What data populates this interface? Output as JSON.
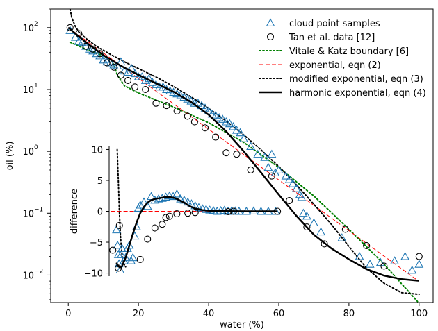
{
  "chart_data": [
    {
      "type": "scatter",
      "xlabel": "water (%)",
      "ylabel": "oil (%)",
      "yscale": "log",
      "xlim": [
        -5,
        104
      ],
      "ylim": [
        0.0036,
        200
      ],
      "x_ticks": [
        0,
        20,
        40,
        60,
        80,
        100
      ],
      "x_tick_labels": [
        "0",
        "20",
        "40",
        "60",
        "80",
        "100"
      ],
      "y_ticks": [
        0.01,
        0.1,
        1,
        10,
        100
      ],
      "y_tick_labels": [
        {
          "base": "10",
          "exp": "−2"
        },
        {
          "base": "10",
          "exp": "−1"
        },
        {
          "base": "10",
          "exp": "0"
        },
        {
          "base": "10",
          "exp": "1"
        },
        {
          "base": "10",
          "exp": "2"
        }
      ],
      "legend": {
        "placement": "top-right",
        "entries": [
          "cloud point samples",
          "Tan et al. data [12]",
          "Vitale & Katz boundary [6]",
          "exponential, eqn (2)",
          "modified exponential, eqn (3)",
          "harmonic exponential, eqn (4)"
        ]
      },
      "colors": {
        "samples": "#1f77b4",
        "tan": "#000000",
        "vitale": "#008000",
        "exponential": "#ff0000",
        "modified": "#000000",
        "harmonic": "#000000"
      },
      "series": [
        {
          "name": "cloud point samples",
          "marker": "triangle",
          "x": [
            0.5,
            2,
            3,
            4,
            5,
            6,
            7,
            8,
            9,
            10,
            11,
            12,
            13,
            14,
            15,
            16,
            17,
            18,
            19,
            20,
            21,
            22,
            23,
            24,
            25,
            26,
            27,
            28,
            29,
            30,
            31,
            32,
            33,
            34,
            35,
            36,
            37,
            38,
            39,
            40,
            41,
            42,
            43,
            44,
            45,
            46,
            47,
            48,
            49,
            50,
            52,
            54,
            56,
            57,
            58,
            59,
            60,
            62,
            63,
            64,
            65,
            66,
            66.5,
            67,
            68,
            70,
            72,
            78,
            83,
            86,
            89,
            93,
            96,
            98,
            100
          ],
          "y": [
            90,
            70,
            60,
            58,
            50,
            45,
            42,
            38,
            35,
            30,
            28,
            27,
            25,
            24,
            28,
            20,
            19,
            22,
            18,
            16,
            16,
            14,
            15,
            13,
            12,
            11,
            11,
            10,
            9.5,
            9,
            8.5,
            8,
            7.5,
            7,
            6.5,
            6,
            6,
            5.5,
            5,
            4.5,
            4,
            3.8,
            3.5,
            3.3,
            3,
            2.8,
            2.5,
            2.2,
            2.0,
            1.6,
            1.2,
            0.9,
            0.8,
            0.55,
            0.9,
            0.45,
            0.5,
            0.4,
            0.35,
            0.3,
            0.25,
            0.2,
            0.18,
            0.1,
            0.09,
            0.07,
            0.05,
            0.04,
            0.02,
            0.015,
            0.016,
            0.017,
            0.02,
            0.012,
            0.015
          ]
        },
        {
          "name": "Tan et al. data [12]",
          "marker": "circle",
          "x": [
            0.5,
            3,
            5,
            7,
            9,
            11,
            13,
            15,
            17,
            19,
            22,
            25,
            28,
            31,
            34,
            36,
            39,
            42,
            45,
            48,
            52,
            58,
            63,
            68,
            73,
            79,
            85,
            90,
            100
          ],
          "y": [
            100,
            80,
            50,
            45,
            38,
            27,
            23,
            17,
            14,
            11,
            10,
            6,
            5.5,
            4.5,
            3.7,
            3.0,
            2.4,
            1.7,
            0.95,
            0.9,
            0.5,
            0.4,
            0.16,
            0.06,
            0.032,
            0.055,
            0.03,
            0.014,
            0.02
          ]
        },
        {
          "name": "Vitale & Katz boundary [6]",
          "style": "dotted",
          "x": [
            0.5,
            5,
            10,
            12,
            13,
            14,
            16,
            20,
            30,
            40,
            50,
            60,
            70,
            80,
            90,
            100
          ],
          "y": [
            58,
            45,
            35,
            31,
            25,
            17,
            11.5,
            8.8,
            5.2,
            2.9,
            1.4,
            0.55,
            0.19,
            0.055,
            0.015,
            0.0035
          ]
        },
        {
          "name": "exponential, eqn (2)",
          "style": "dashed",
          "x": [
            0,
            100
          ],
          "y": [
            100,
            0.0079
          ]
        },
        {
          "name": "modified exponential, eqn (3)",
          "style": "dotted",
          "x": [
            0.5,
            1,
            2,
            3,
            5,
            8,
            12,
            16,
            20,
            25,
            30,
            35,
            40,
            45,
            50,
            55,
            60,
            65,
            70,
            75,
            80,
            85,
            90,
            95,
            100
          ],
          "y": [
            200,
            145,
            105,
            85,
            67,
            50,
            37,
            28,
            21.8,
            15.9,
            11.2,
            7.6,
            4.95,
            3.1,
            1.85,
            1.05,
            0.57,
            0.29,
            0.14,
            0.066,
            0.029,
            0.013,
            0.0074,
            0.0052,
            0.0049
          ]
        },
        {
          "name": "harmonic exponential, eqn (4)",
          "style": "solid",
          "x": [
            0,
            5,
            10,
            15,
            20,
            25,
            30,
            35,
            40,
            45,
            50,
            55,
            60,
            65,
            70,
            75,
            80,
            85,
            90,
            95,
            100
          ],
          "y": [
            100,
            58,
            36,
            24.2,
            17.2,
            12.6,
            9.2,
            6.3,
            3.9,
            2.1,
            1.0,
            0.45,
            0.2,
            0.091,
            0.045,
            0.027,
            0.018,
            0.0125,
            0.0098,
            0.0086,
            0.0081
          ]
        }
      ]
    },
    {
      "type": "scatter",
      "inset": true,
      "xlabel": "",
      "ylabel": "difference",
      "xlim": [
        12.5,
        60
      ],
      "ylim": [
        -10.5,
        10.5
      ],
      "y_ticks": [
        -10,
        -5,
        0,
        5,
        10
      ],
      "y_tick_labels": [
        "−10",
        "−5",
        "0",
        "5",
        "10"
      ],
      "series": [
        {
          "name": "cloud point samples",
          "marker": "triangle",
          "x": [
            14.5,
            14.8,
            15.0,
            15.2,
            15.5,
            15.8,
            16.0,
            16.5,
            17,
            17.5,
            18,
            18.5,
            19,
            19.5,
            20,
            20.5,
            21,
            22,
            23,
            24,
            25,
            26,
            27,
            28,
            29,
            30,
            31,
            32,
            33,
            34,
            35,
            36,
            37,
            38,
            39,
            40,
            41,
            42,
            43,
            44,
            45,
            46,
            47,
            48,
            50,
            52,
            54,
            56,
            58
          ],
          "y": [
            -3,
            -5.5,
            -7,
            -8.5,
            -9.5,
            -7,
            -6,
            -8,
            -7.5,
            -6,
            -5.5,
            -8,
            -7.5,
            -4,
            -2.5,
            0.5,
            1,
            1.5,
            0.8,
            2.4,
            1.8,
            2.0,
            2.1,
            2.3,
            2.5,
            2.4,
            2.8,
            2.0,
            1.8,
            1.5,
            1.2,
            0.9,
            0.6,
            0.4,
            0.3,
            0.2,
            0.1,
            0.0,
            0.1,
            0.15,
            0.0,
            0.1,
            0.05,
            0.0,
            0.0,
            0.05,
            0.0,
            0.0,
            0.0
          ]
        },
        {
          "name": "Tan et al. data [12]",
          "marker": "circle",
          "x": [
            13.5,
            15,
            15.3,
            21,
            23,
            25,
            27,
            28,
            29,
            31,
            34,
            36,
            45,
            46.5,
            58.5
          ],
          "y": [
            -6.3,
            -9.2,
            -2.3,
            -7.8,
            -4.5,
            -2.7,
            -2.1,
            -1.0,
            -0.8,
            -0.4,
            -0.3,
            -0.2,
            -0.05,
            0.0,
            0.0
          ]
        },
        {
          "name": "exponential, eqn (2)",
          "style": "dashed",
          "x": [
            13,
            58.5
          ],
          "y": [
            0,
            0
          ]
        },
        {
          "name": "modified exponential, eqn (3)",
          "style": "dotted",
          "x": [
            14.7,
            15.0,
            15.3,
            15.6,
            16.0,
            16.5,
            17
          ],
          "y": [
            10,
            5,
            0,
            -4,
            -7,
            -8.5,
            -9
          ]
        },
        {
          "name": "harmonic exponential, eqn (4)",
          "style": "solid",
          "x": [
            14.5,
            15,
            15.5,
            16,
            17,
            18,
            19,
            20,
            21,
            22,
            23,
            24,
            25,
            26,
            27,
            28,
            29,
            30,
            31,
            32,
            33,
            34,
            35,
            36,
            38,
            40,
            44,
            50,
            58.5
          ],
          "y": [
            -8.3,
            -8.9,
            -9.1,
            -8.9,
            -7.5,
            -5.6,
            -3.6,
            -1.8,
            -0.3,
            0.7,
            1.4,
            1.8,
            2.0,
            2.1,
            2.2,
            2.3,
            2.3,
            2.2,
            2.0,
            1.7,
            1.4,
            1.0,
            0.7,
            0.45,
            0.2,
            0.08,
            0.02,
            0.0,
            0.0
          ]
        }
      ]
    }
  ]
}
